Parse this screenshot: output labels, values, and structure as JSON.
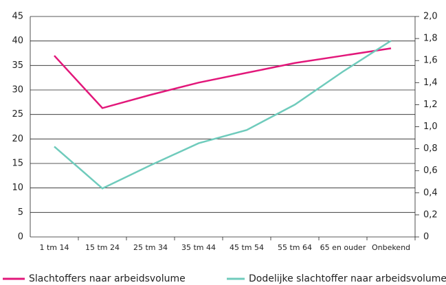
{
  "chart_data": {
    "type": "line",
    "categories": [
      "1 tm 14",
      "15 tm 24",
      "25 tm 34",
      "35 tm 44",
      "45 tm 54",
      "55 tm 64",
      "65 en ouder",
      "Onbekend"
    ],
    "series": [
      {
        "name": "Slachtoffers naar arbeidsvolume",
        "color": "#e2177a",
        "values": [
          37,
          26.3,
          29,
          31.5,
          33.5,
          35.5,
          37,
          38.5
        ]
      },
      {
        "name": "Dodelijke slachtoffer naar arbeidsvolume",
        "color": "#6fcbbc",
        "axis": "y2",
        "values": [
          0.82,
          0.44,
          0.65,
          0.85,
          0.97,
          1.2,
          1.5,
          1.78
        ]
      }
    ],
    "ylim": [
      0,
      45
    ],
    "yticks": [
      0,
      5,
      10,
      15,
      20,
      25,
      30,
      35,
      40,
      45
    ],
    "y2lim": [
      0,
      2
    ],
    "y2ticks": [
      0,
      {
        "value": 0.2,
        "label": "0,2"
      },
      {
        "value": 0.4,
        "label": "0,4"
      },
      {
        "value": 0.6,
        "label": "0,6"
      },
      {
        "value": 0.8,
        "label": "0,8"
      },
      {
        "value": 1,
        "label": "1,0"
      },
      {
        "value": 1.2,
        "label": "1,2"
      },
      {
        "value": 1.4,
        "label": "1,4"
      },
      {
        "value": 1.6,
        "label": "1,6"
      },
      {
        "value": 1.8,
        "label": "1,8"
      },
      {
        "value": 2,
        "label": "2,0"
      }
    ],
    "grid": true
  }
}
